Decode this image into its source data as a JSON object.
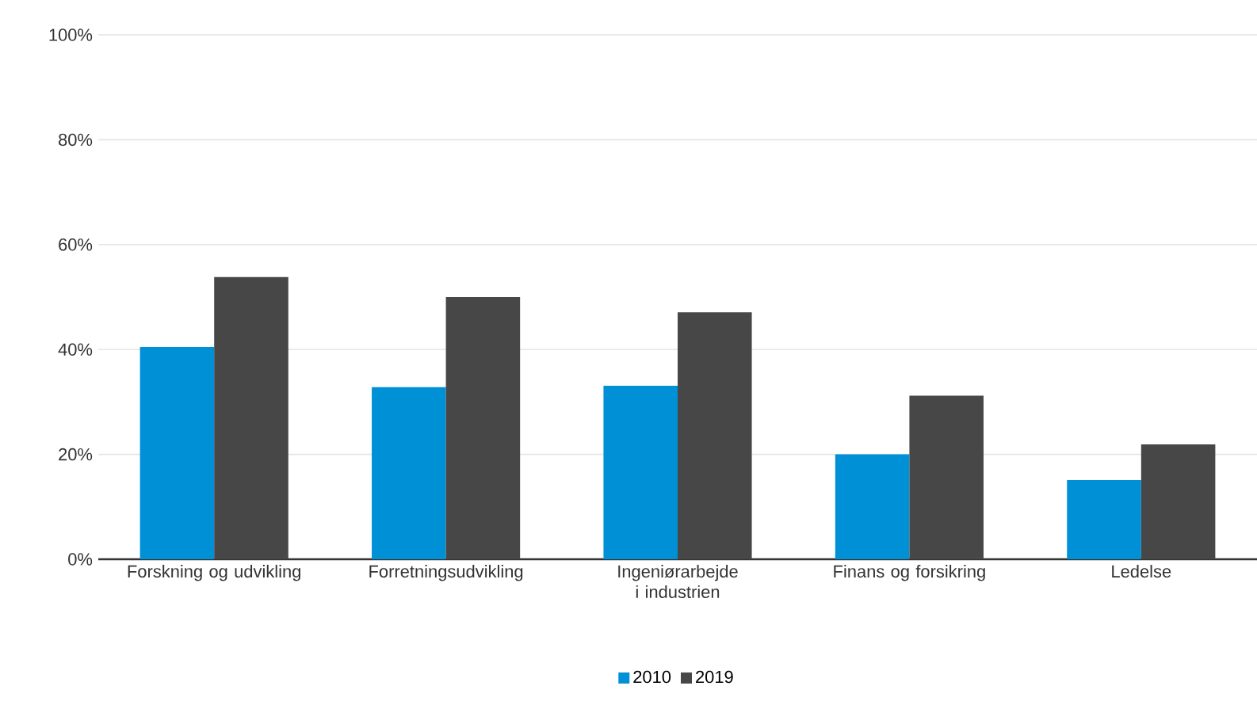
{
  "chart_data": {
    "type": "bar",
    "categories": [
      "Forskning og udvikling",
      "Forretningsudvikling",
      "Ingeniørarbejde i industrien",
      "Finans og forsikring",
      "Ledelse"
    ],
    "series": [
      {
        "name": "2010",
        "color": "#0090d6",
        "values": [
          40.5,
          32.8,
          33.1,
          20.0,
          15.1
        ]
      },
      {
        "name": "2019",
        "color": "#474747",
        "values": [
          53.8,
          50.0,
          47.1,
          31.2,
          21.9
        ]
      }
    ],
    "ylim": [
      0,
      100
    ],
    "yticks": [
      {
        "value": 0,
        "label": "0%"
      },
      {
        "value": 20,
        "label": "20%"
      },
      {
        "value": 40,
        "label": "40%"
      },
      {
        "value": 60,
        "label": "60%"
      },
      {
        "value": 80,
        "label": "80%"
      },
      {
        "value": 100,
        "label": "100%"
      }
    ],
    "grid": "y",
    "legend": "bottom"
  }
}
